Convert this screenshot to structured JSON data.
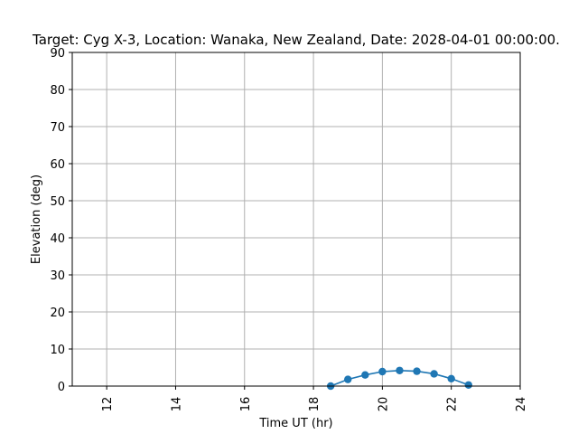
{
  "chart_data": {
    "type": "line",
    "title": "Target: Cyg X-3,  Location: Wanaka, New Zealand, Date: 2028-04-01 00:00:00.",
    "xlabel": "Time UT (hr)",
    "ylabel": "Elevation (deg)",
    "xlim": [
      11,
      24
    ],
    "ylim": [
      0,
      90
    ],
    "xticks": [
      12,
      14,
      16,
      18,
      20,
      22,
      24
    ],
    "yticks": [
      0,
      10,
      20,
      30,
      40,
      50,
      60,
      70,
      80,
      90
    ],
    "grid": true,
    "series": [
      {
        "color": "#1f77b4",
        "x": [
          18.5,
          19.0,
          19.5,
          20.0,
          20.5,
          21.0,
          21.5,
          22.0,
          22.5
        ],
        "y": [
          0.0,
          1.8,
          3.0,
          3.9,
          4.2,
          4.0,
          3.3,
          2.0,
          0.3
        ]
      }
    ]
  }
}
